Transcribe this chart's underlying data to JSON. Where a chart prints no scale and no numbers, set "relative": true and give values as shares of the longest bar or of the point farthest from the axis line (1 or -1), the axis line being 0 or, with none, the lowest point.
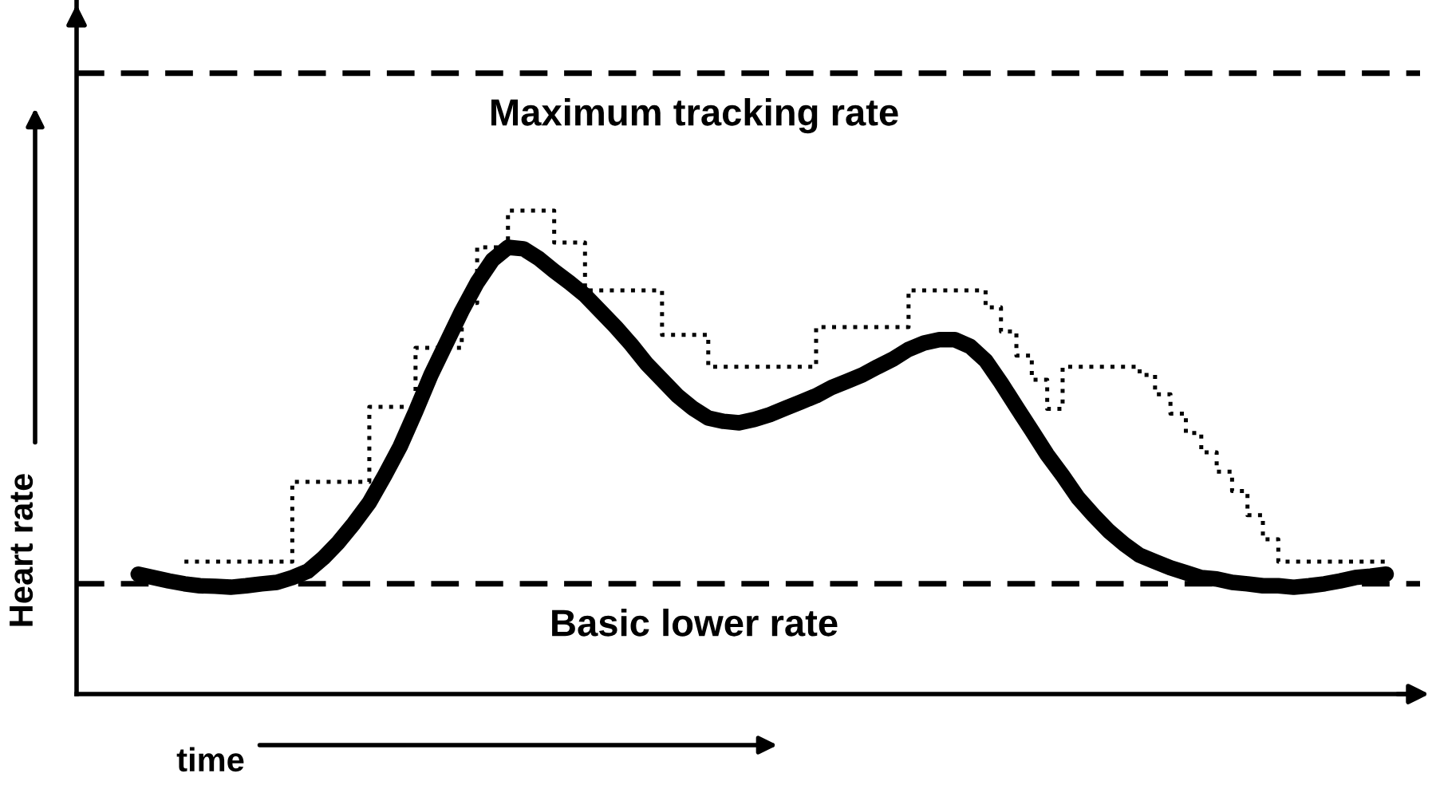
{
  "chart_data": {
    "type": "line",
    "relative": true,
    "xlabel": "time",
    "ylabel": "Heart rate",
    "legend": false,
    "categories": [
      null,
      null,
      null,
      null,
      null,
      null,
      null,
      null,
      null,
      null,
      null,
      null,
      null,
      null,
      null,
      null,
      null,
      null,
      null,
      null,
      null,
      null,
      null,
      null,
      null,
      null,
      null,
      null,
      null,
      null,
      null,
      null,
      null,
      null,
      null,
      null,
      null,
      null,
      null,
      null,
      null,
      null,
      null,
      null,
      null,
      null,
      null,
      null,
      null,
      null,
      null,
      null,
      null,
      null,
      null,
      null,
      null,
      null,
      null,
      null,
      null,
      null,
      null,
      null,
      null,
      null,
      null,
      null,
      null,
      null,
      null,
      null,
      null,
      null,
      null,
      null,
      null,
      null,
      null,
      null,
      null,
      null
    ],
    "series": [
      {
        "type": "step",
        "color": "#000000",
        "line_style": "dotted",
        "values": [
          null,
          null,
          null,
          0.274,
          0.274,
          0.274,
          0.274,
          0.274,
          0.274,
          0.274,
          0.439,
          0.439,
          0.439,
          0.439,
          0.439,
          0.594,
          0.594,
          0.594,
          0.716,
          0.716,
          0.716,
          0.809,
          0.924,
          0.924,
          1.0,
          1.0,
          1.0,
          0.934,
          0.934,
          0.835,
          0.835,
          0.835,
          0.835,
          0.835,
          0.743,
          0.743,
          0.743,
          0.677,
          0.677,
          0.677,
          0.677,
          0.677,
          0.677,
          0.677,
          0.759,
          0.759,
          0.759,
          0.759,
          0.759,
          0.759,
          0.835,
          0.835,
          0.835,
          0.835,
          0.835,
          0.8,
          0.75,
          0.7,
          0.65,
          0.59,
          0.677,
          0.677,
          0.677,
          0.677,
          0.677,
          0.66,
          0.62,
          0.58,
          0.54,
          0.5,
          0.46,
          0.42,
          0.37,
          0.32,
          0.274,
          0.274,
          0.274,
          0.274,
          0.274,
          0.274,
          0.274,
          0.274
        ]
      },
      {
        "color": "#000000",
        "line_style": "solid",
        "values": [
          0.248,
          0.241,
          0.234,
          0.228,
          0.224,
          0.223,
          0.221,
          0.224,
          0.228,
          0.231,
          0.241,
          0.254,
          0.281,
          0.314,
          0.353,
          0.396,
          0.452,
          0.512,
          0.584,
          0.66,
          0.726,
          0.792,
          0.851,
          0.898,
          0.924,
          0.921,
          0.901,
          0.875,
          0.851,
          0.825,
          0.792,
          0.759,
          0.723,
          0.683,
          0.65,
          0.617,
          0.591,
          0.571,
          0.564,
          0.561,
          0.568,
          0.578,
          0.591,
          0.604,
          0.617,
          0.634,
          0.647,
          0.66,
          0.677,
          0.693,
          0.713,
          0.726,
          0.733,
          0.733,
          0.719,
          0.69,
          0.644,
          0.594,
          0.545,
          0.495,
          0.452,
          0.406,
          0.37,
          0.337,
          0.31,
          0.287,
          0.274,
          0.261,
          0.251,
          0.241,
          0.238,
          0.231,
          0.228,
          0.224,
          0.224,
          0.221,
          0.224,
          0.228,
          0.234,
          0.241,
          0.244,
          0.248
        ]
      }
    ],
    "ref_lines": [
      {
        "axis": "y",
        "value": 1.284,
        "label": "Maximum tracking rate",
        "color": "#000000",
        "line_style": "dashed"
      },
      {
        "axis": "y",
        "value": 0.228,
        "label": "Basic lower rate",
        "color": "#000000",
        "line_style": "dashed"
      }
    ]
  }
}
